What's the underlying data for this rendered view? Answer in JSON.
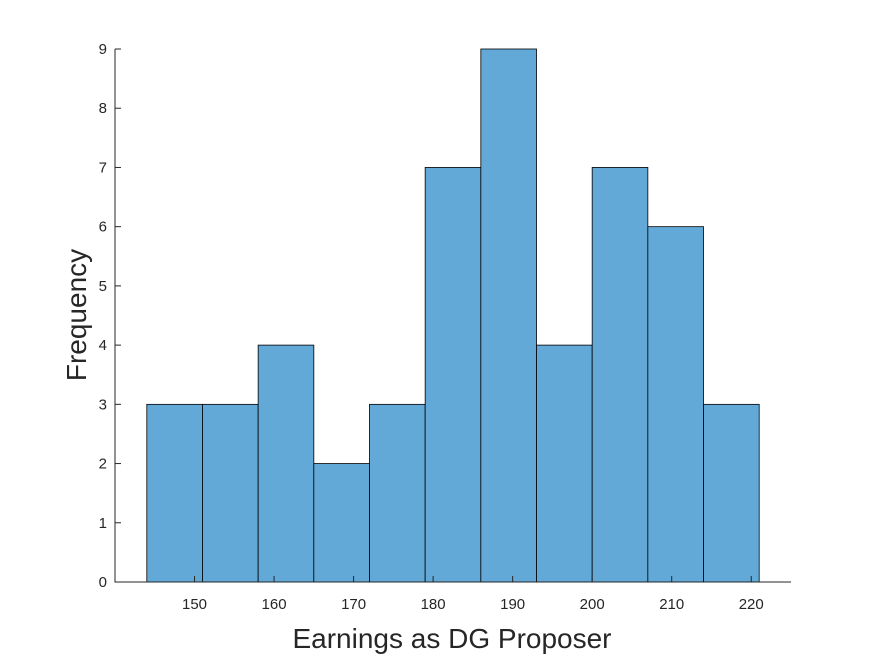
{
  "chart_data": {
    "type": "bar",
    "title": "",
    "xlabel": "Earnings as DG Proposer",
    "ylabel": "Frequency",
    "bin_edges": [
      144,
      151,
      158,
      165,
      172,
      179,
      186,
      193,
      200,
      207,
      214,
      221
    ],
    "values": [
      3,
      3,
      4,
      2,
      3,
      7,
      9,
      4,
      7,
      6,
      3
    ],
    "xlim": [
      140,
      225
    ],
    "ylim": [
      0,
      9
    ],
    "xticks": [
      150,
      160,
      170,
      180,
      190,
      200,
      210,
      220
    ],
    "yticks": [
      0,
      1,
      2,
      3,
      4,
      5,
      6,
      7,
      8,
      9
    ],
    "bar_color": "#63a9d8",
    "grid": false,
    "legend": "none"
  }
}
